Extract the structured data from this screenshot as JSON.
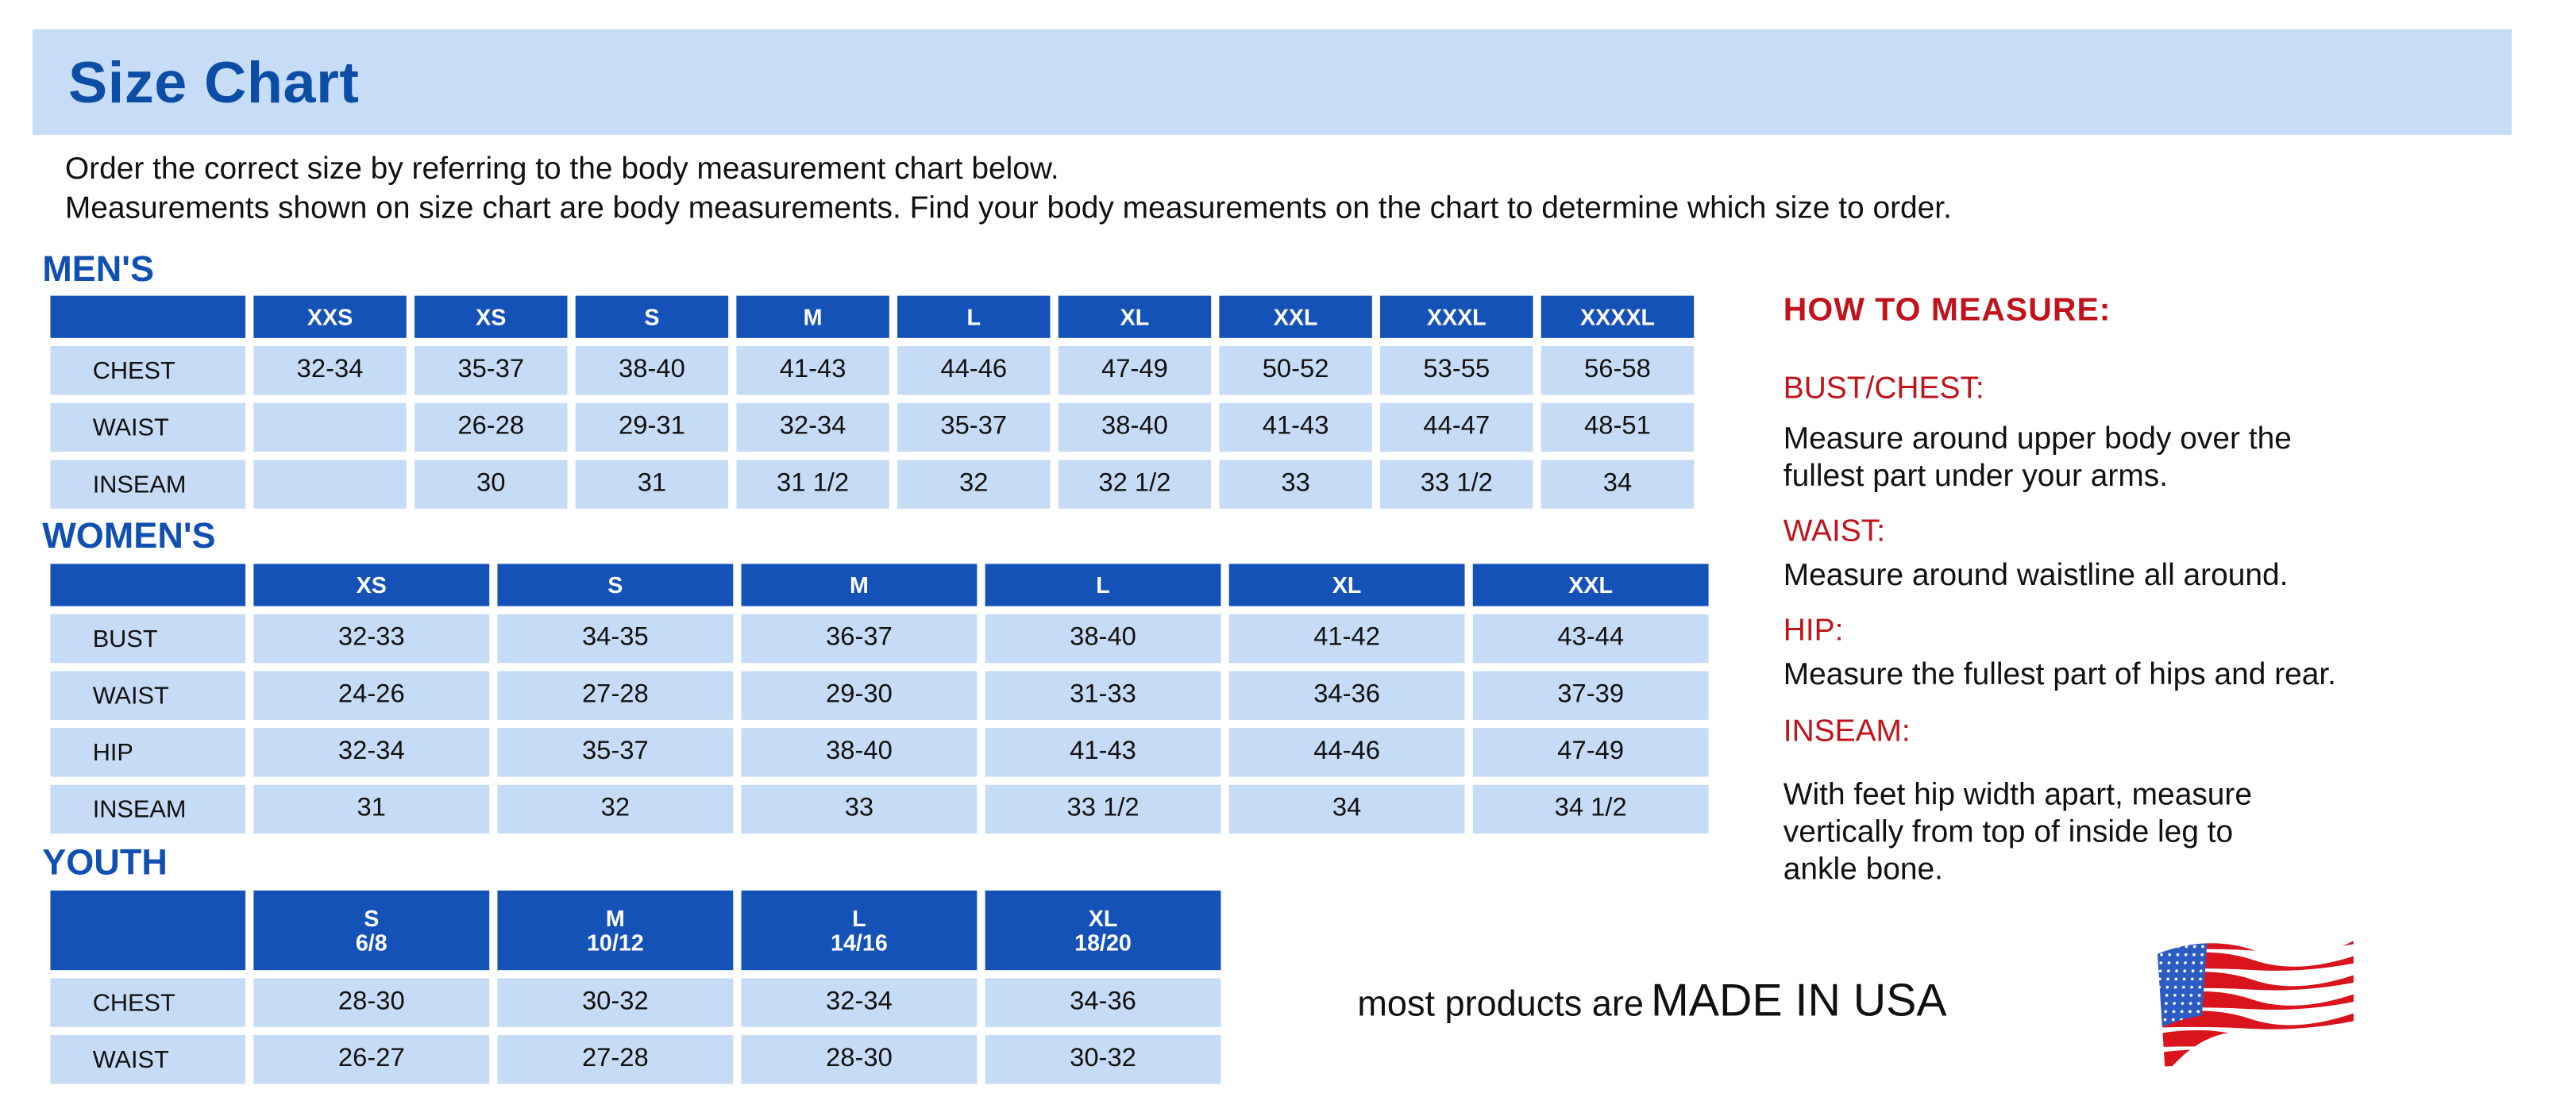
{
  "title": "Size Chart",
  "intro": [
    "Order the correct size by referring to the body measurement chart below.",
    "Measurements shown on size chart are body measurements.  Find your body measurements on the chart to determine which size to order."
  ],
  "colors": {
    "header_cell": "#1452b8",
    "body_cell": "#c6dcf6",
    "title_blue": "#0c4ea6",
    "accent_red": "#c0141c"
  },
  "mens": {
    "label": "MEN'S",
    "sizes": [
      "XXS",
      "XS",
      "S",
      "M",
      "L",
      "XL",
      "XXL",
      "XXXL",
      "XXXXL"
    ],
    "rows": [
      {
        "name": "CHEST",
        "values": [
          "32-34",
          "35-37",
          "38-40",
          "41-43",
          "44-46",
          "47-49",
          "50-52",
          "53-55",
          "56-58"
        ]
      },
      {
        "name": "WAIST",
        "values": [
          "",
          "26-28",
          "29-31",
          "32-34",
          "35-37",
          "38-40",
          "41-43",
          "44-47",
          "48-51"
        ]
      },
      {
        "name": "INSEAM",
        "values": [
          "",
          "30",
          "31",
          "31 1/2",
          "32",
          "32 1/2",
          "33",
          "33 1/2",
          "34"
        ]
      }
    ]
  },
  "womens": {
    "label": "WOMEN'S",
    "sizes": [
      "XS",
      "S",
      "M",
      "L",
      "XL",
      "XXL"
    ],
    "rows": [
      {
        "name": "BUST",
        "values": [
          "32-33",
          "34-35",
          "36-37",
          "38-40",
          "41-42",
          "43-44"
        ]
      },
      {
        "name": "WAIST",
        "values": [
          "24-26",
          "27-28",
          "29-30",
          "31-33",
          "34-36",
          "37-39"
        ]
      },
      {
        "name": "HIP",
        "values": [
          "32-34",
          "35-37",
          "38-40",
          "41-43",
          "44-46",
          "47-49"
        ]
      },
      {
        "name": "INSEAM",
        "values": [
          "31",
          "32",
          "33",
          "33 1/2",
          "34",
          "34 1/2"
        ]
      }
    ]
  },
  "youth": {
    "label": "YOUTH",
    "sizes": [
      [
        "S",
        "6/8"
      ],
      [
        "M",
        "10/12"
      ],
      [
        "L",
        "14/16"
      ],
      [
        "XL",
        "18/20"
      ]
    ],
    "rows": [
      {
        "name": "CHEST",
        "values": [
          "28-30",
          "30-32",
          "32-34",
          "34-36"
        ]
      },
      {
        "name": "WAIST",
        "values": [
          "26-27",
          "27-28",
          "28-30",
          "30-32"
        ]
      }
    ]
  },
  "how_to_measure": {
    "heading": "HOW TO MEASURE:",
    "items": [
      {
        "term": "BUST/CHEST:",
        "desc": [
          "Measure around upper body over the",
          "fullest part under your arms."
        ]
      },
      {
        "term": "WAIST:",
        "desc": [
          "Measure around waistline all around."
        ]
      },
      {
        "term": "HIP:",
        "desc": [
          "Measure the fullest part of hips and rear."
        ]
      },
      {
        "term": "INSEAM:",
        "desc": [
          "With feet hip width apart, measure",
          "vertically from top of inside leg to",
          "ankle bone."
        ]
      }
    ]
  },
  "made_in": {
    "prefix": "most products are",
    "emphasis": "MADE IN USA",
    "icon": "us-flag-icon"
  }
}
